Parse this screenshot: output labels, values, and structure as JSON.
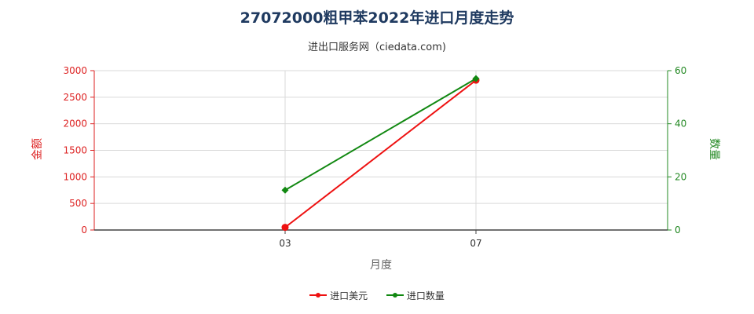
{
  "title": "27072000粗甲苯2022年进口月度走势",
  "subtitle": "进出口服务网（ciedata.com)",
  "chart_data": {
    "type": "line",
    "categories": [
      "03",
      "07"
    ],
    "xlabel": "月度",
    "y_left": {
      "label": "金额",
      "range": [
        0,
        3000
      ],
      "ticks": [
        "0",
        "500",
        "1000",
        "1500",
        "2000",
        "2500",
        "3000"
      ],
      "color": "#dd2222"
    },
    "y_right": {
      "label": "数量",
      "range": [
        0,
        60
      ],
      "ticks": [
        "0",
        "20",
        "40",
        "60"
      ],
      "color": "#228822"
    },
    "series": [
      {
        "name": "进口美元",
        "axis": "left",
        "color": "#ee1111",
        "values": [
          50,
          2820
        ]
      },
      {
        "name": "进口数量",
        "axis": "right",
        "color": "#118811",
        "values": [
          15,
          57
        ]
      }
    ],
    "grid": true,
    "legend": "bottom"
  }
}
